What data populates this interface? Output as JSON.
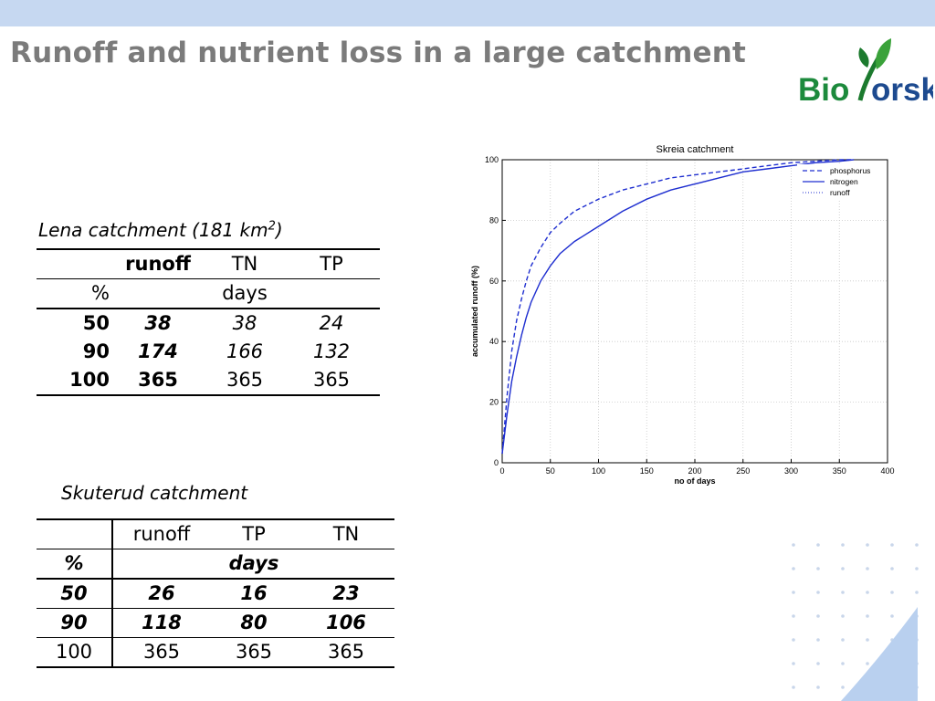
{
  "slide": {
    "title": "Runoff and nutrient loss in a large catchment",
    "logo_text": "Bioforsk"
  },
  "lena": {
    "caption": "Lena catchment (181 km",
    "caption_sup": "2",
    "caption_end": ")",
    "header": [
      "",
      "runoff",
      "TN",
      "TP"
    ],
    "units": [
      "%",
      "",
      "days",
      ""
    ],
    "rows": [
      [
        "50",
        "38",
        "38",
        "24"
      ],
      [
        "90",
        "174",
        "166",
        "132"
      ],
      [
        "100",
        "365",
        "365",
        "365"
      ]
    ]
  },
  "skuterud": {
    "caption": "Skuterud catchment",
    "header": [
      "",
      "runoff",
      "TP",
      "TN"
    ],
    "units": [
      "%",
      "",
      "days",
      ""
    ],
    "rows": [
      [
        "50",
        "26",
        "16",
        "23"
      ],
      [
        "90",
        "118",
        "80",
        "106"
      ],
      [
        "100",
        "365",
        "365",
        "365"
      ]
    ]
  },
  "chart_data": {
    "type": "line",
    "title": "Skreia catchment",
    "xlabel": "no of days",
    "ylabel": "accumulated runoff (%)",
    "xlim": [
      0,
      400
    ],
    "ylim": [
      0,
      100
    ],
    "xticks": [
      0,
      50,
      100,
      150,
      200,
      250,
      300,
      350,
      400
    ],
    "yticks": [
      0,
      20,
      40,
      60,
      80,
      100
    ],
    "grid": true,
    "legend_position": "top-right",
    "colors": {
      "series": "#1f2fd0",
      "grid": "#c8c8c8",
      "axis": "#000000"
    },
    "series": [
      {
        "name": "phosphorus",
        "style": "dashed",
        "x": [
          0,
          5,
          10,
          15,
          20,
          25,
          30,
          40,
          50,
          60,
          75,
          100,
          125,
          150,
          175,
          200,
          225,
          250,
          275,
          300,
          325,
          350,
          365
        ],
        "y": [
          3,
          22,
          37,
          47,
          54,
          60,
          65,
          71,
          76,
          79,
          83,
          87,
          90,
          92,
          94,
          95,
          96,
          97,
          98,
          99,
          99.5,
          100,
          100
        ]
      },
      {
        "name": "nitrogen",
        "style": "solid",
        "x": [
          0,
          5,
          10,
          15,
          20,
          25,
          30,
          40,
          50,
          60,
          75,
          100,
          125,
          150,
          175,
          200,
          225,
          250,
          275,
          300,
          325,
          350,
          365
        ],
        "y": [
          3,
          16,
          27,
          35,
          42,
          48,
          53,
          60,
          65,
          69,
          73,
          78,
          83,
          87,
          90,
          92,
          94,
          96,
          97,
          98,
          99,
          99.5,
          100
        ]
      },
      {
        "name": "runoff",
        "style": "dotted",
        "x": [
          0,
          5,
          10,
          15,
          20,
          25,
          30,
          40,
          50,
          60,
          75,
          100,
          125,
          150,
          175,
          200,
          225,
          250,
          275,
          300,
          325,
          350,
          365
        ],
        "y": [
          3,
          16,
          27,
          35,
          42,
          48,
          53,
          60,
          65,
          69,
          73,
          78,
          83,
          87,
          90,
          92,
          94,
          96,
          97,
          98,
          99,
          99.5,
          100
        ]
      }
    ]
  }
}
